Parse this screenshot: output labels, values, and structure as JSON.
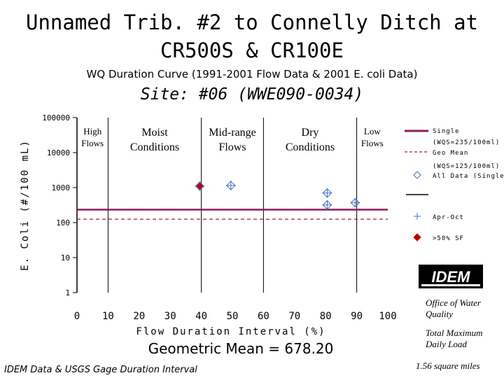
{
  "header": {
    "title_line1": "Unnamed Trib. #2 to Connelly Ditch at",
    "title_line2": "CR500S & CR100E",
    "subtitle": "WQ Duration Curve  (1991-2001 Flow Data & 2001 E. coli Data)",
    "site": "Site:  #06 (WWE090-0034)"
  },
  "chart_data": {
    "type": "scatter",
    "title": "Unnamed Trib. #2 to Connelly Ditch at CR500S & CR100E",
    "xlabel": "Flow Duration Interval (%)",
    "ylabel": "E. Coli (#/100 mL)",
    "xlim": [
      0,
      100
    ],
    "ylim": [
      1,
      100000
    ],
    "yscale": "log",
    "x_ticks": [
      "0",
      "10",
      "20",
      "30",
      "40",
      "50",
      "60",
      "70",
      "80",
      "90",
      "100"
    ],
    "y_ticks": [
      "100000",
      "10000",
      "1000",
      "100",
      "10",
      "1"
    ],
    "grid": false,
    "zone_boundaries": [
      10,
      40,
      60,
      90
    ],
    "zones": [
      {
        "label_lines": [
          "High",
          "Flows"
        ],
        "x": 5
      },
      {
        "label_lines": [
          "Moist",
          "Conditions"
        ],
        "x": 25
      },
      {
        "label_lines": [
          "Mid-range",
          "Flows"
        ],
        "x": 50
      },
      {
        "label_lines": [
          "Dry",
          "Conditions"
        ],
        "x": 75
      },
      {
        "label_lines": [
          "Low",
          "Flows"
        ],
        "x": 95
      }
    ],
    "reference_lines": [
      {
        "name": "Single (WQS=235/100ml)",
        "y": 235,
        "color": "#8b1a5a",
        "style": "solid"
      },
      {
        "name": "Geo Mean (WQS=125/100ml)",
        "y": 125,
        "color": "#8b2c2c",
        "style": "dashed"
      }
    ],
    "series": [
      {
        "name": "All Data (Single)",
        "marker": "diamond-open",
        "color": "#4472c4",
        "points": [
          [
            39.5,
            1100
          ],
          [
            49.5,
            1150
          ],
          [
            80.5,
            700
          ],
          [
            80.5,
            320
          ],
          [
            89.5,
            370
          ]
        ]
      },
      {
        "name": "Apr-Oct",
        "marker": "plus",
        "color": "#4472c4",
        "points": [
          [
            39.5,
            1100
          ],
          [
            49.5,
            1150
          ],
          [
            80.5,
            700
          ],
          [
            80.5,
            320
          ],
          [
            89.5,
            370
          ]
        ]
      },
      {
        "name": ">50% SF",
        "marker": "diamond-filled",
        "color": "#c00000",
        "points": [
          [
            39.5,
            1100
          ]
        ]
      }
    ]
  },
  "legend": {
    "single_line1": "Single",
    "single_line2": "(WQS=235/100ml)",
    "geo_line1": "Geo Mean",
    "geo_line2": "(WQS=125/100ml)",
    "all_data": "All Data (Single)",
    "apr_oct": "Apr-Oct",
    "sf": ">50% SF"
  },
  "footer": {
    "geo_mean_text": "Geometric Mean = 678.20",
    "source": "IDEM Data & USGS Gage Duration Interval",
    "office_line1": "Office of Water",
    "office_line2": "Quality",
    "tmdl_line1": "Total Maximum",
    "tmdl_line2": "Daily Load",
    "area": "1.56 square miles",
    "logo_text": "IDEM"
  },
  "colors": {
    "single_line": "#8b1a5a",
    "geo_line": "#8b2c2c",
    "open_marker": "#4472c4",
    "filled_marker": "#c00000"
  }
}
